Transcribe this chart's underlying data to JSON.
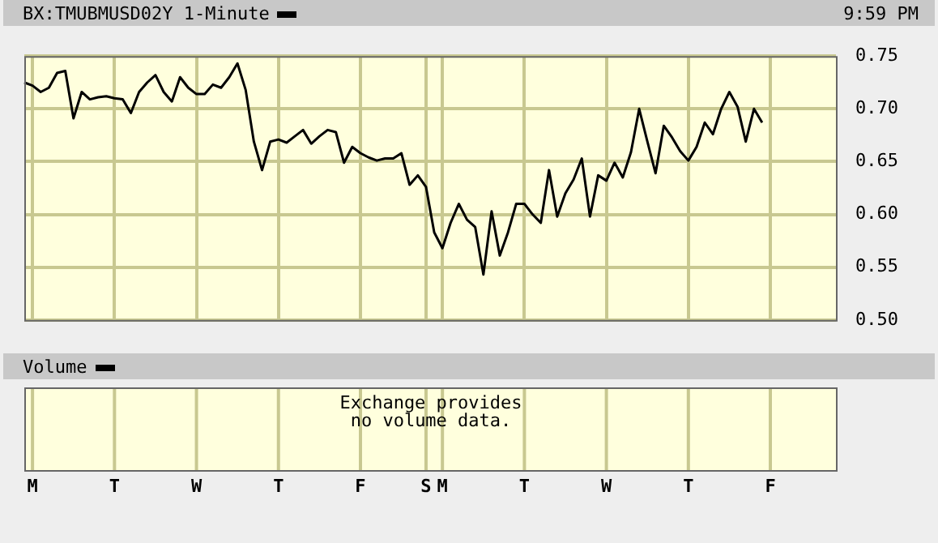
{
  "chart_data": [
    {
      "type": "line",
      "legend": "top left",
      "annotations": [
        "9:59 PM"
      ],
      "grid": true,
      "tick_labels": "y",
      "marker": "none",
      "categories": [
        null,
        "M",
        null,
        null,
        null,
        null,
        null,
        null,
        null,
        null,
        null,
        "T",
        null,
        null,
        null,
        null,
        null,
        null,
        null,
        null,
        null,
        "W",
        null,
        null,
        null,
        null,
        null,
        null,
        null,
        null,
        null,
        "T",
        null,
        null,
        null,
        null,
        null,
        null,
        null,
        null,
        null,
        "F",
        null,
        null,
        null,
        null,
        null,
        null,
        null,
        "S",
        null,
        "M",
        null,
        null,
        null,
        null,
        null,
        null,
        null,
        null,
        null,
        "T",
        null,
        null,
        null,
        null,
        null,
        null,
        null,
        null,
        null,
        "W",
        null,
        null,
        null,
        null,
        null,
        null,
        null,
        null,
        null,
        "T",
        null,
        null,
        null,
        null,
        null,
        null,
        null,
        null,
        null,
        "F",
        null,
        null,
        null,
        null,
        null,
        null,
        null,
        null
      ],
      "ylim": [
        0.5,
        0.75
      ],
      "yticks": [
        {
          "value": 0.5,
          "label": "0.50"
        },
        {
          "value": 0.55,
          "label": "0.55"
        },
        {
          "value": 0.6,
          "label": "0.60"
        },
        {
          "value": 0.65,
          "label": "0.65"
        },
        {
          "value": 0.7,
          "label": "0.70"
        },
        {
          "value": 0.75,
          "label": "0.75"
        }
      ],
      "series": [
        {
          "name": "BX:TMUBMUSD02Y 1-Minute",
          "color": "#000000",
          "values": [
            0.725,
            0.722,
            0.716,
            0.72,
            0.734,
            0.736,
            0.691,
            0.716,
            0.709,
            0.711,
            0.712,
            0.71,
            0.709,
            0.696,
            0.716,
            0.725,
            0.732,
            0.716,
            0.707,
            0.73,
            0.72,
            0.714,
            0.714,
            0.723,
            0.72,
            0.73,
            0.743,
            0.718,
            0.669,
            0.642,
            0.669,
            0.671,
            0.668,
            0.674,
            0.68,
            0.667,
            0.674,
            0.68,
            0.678,
            0.649,
            0.664,
            0.658,
            0.654,
            0.651,
            0.653,
            0.653,
            0.658,
            0.628,
            0.637,
            0.626,
            0.583,
            0.568,
            0.592,
            0.61,
            0.595,
            0.588,
            0.543,
            0.603,
            0.561,
            0.583,
            0.61,
            0.61,
            0.6,
            0.592,
            0.642,
            0.598,
            0.62,
            0.633,
            0.653,
            0.598,
            0.637,
            0.632,
            0.649,
            0.635,
            0.659,
            0.7,
            0.669,
            0.639,
            0.684,
            0.673,
            0.66,
            0.651,
            0.664,
            0.687,
            0.676,
            0.7,
            0.716,
            0.702,
            0.669,
            0.7,
            0.687,
            null,
            null,
            null,
            null,
            null,
            null,
            null,
            null,
            null
          ]
        }
      ]
    },
    {
      "type": "other",
      "title": "Volume",
      "annotations": [
        "Exchange provides no volume data."
      ]
    }
  ]
}
